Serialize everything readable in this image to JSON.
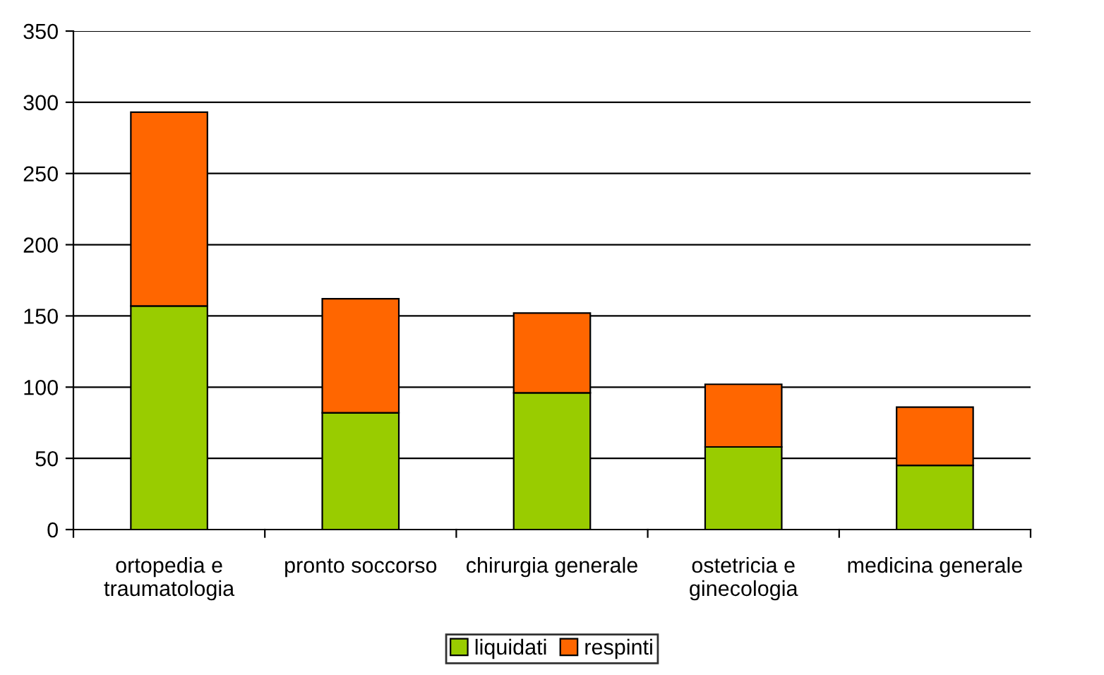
{
  "chart_data": {
    "type": "bar",
    "stacked": true,
    "categories": [
      "ortopedia e traumatologia",
      "pronto soccorso",
      "chirurgia generale",
      "ostetricia e ginecologia",
      "medicina generale"
    ],
    "series": [
      {
        "name": "liquidati",
        "color": "#99cc00",
        "values": [
          157,
          82,
          96,
          58,
          45
        ]
      },
      {
        "name": "respinti",
        "color": "#ff6600",
        "values": [
          136,
          80,
          56,
          44,
          41
        ]
      }
    ],
    "ylim": [
      0,
      350
    ],
    "yticks": [
      0,
      50,
      100,
      150,
      200,
      250,
      300,
      350
    ],
    "grid": "y",
    "legend": "bottom"
  }
}
